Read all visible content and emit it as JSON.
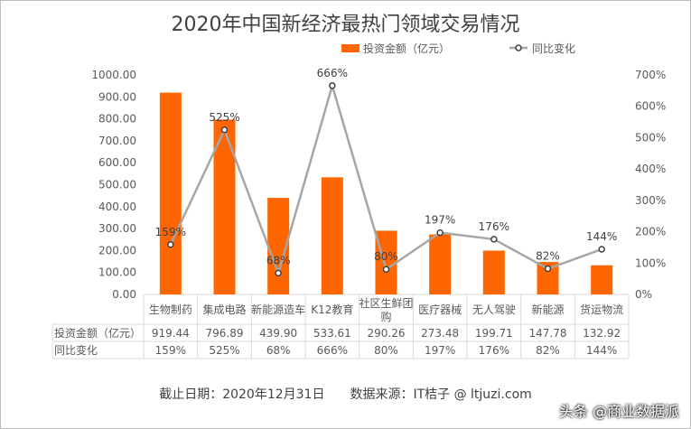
{
  "chart_data": {
    "type": "bar+line",
    "title": "2020年中国新经济最热门领域交易情况",
    "categories": [
      "生物制药",
      "集成电路",
      "新能源造车",
      "K12教育",
      "社区生鲜团购",
      "医疗器械",
      "无人驾驶",
      "新能源",
      "货运物流"
    ],
    "series": [
      {
        "name": "投资金额（亿元）",
        "type": "bar",
        "axis": "left",
        "color": "#FF6600",
        "values": [
          919.44,
          796.89,
          439.9,
          533.61,
          290.26,
          273.48,
          199.71,
          147.78,
          132.92
        ],
        "labels": [
          "919.44",
          "796.89",
          "439.90",
          "533.61",
          "290.26",
          "273.48",
          "199.71",
          "147.78",
          "132.92"
        ]
      },
      {
        "name": "同比变化",
        "type": "line",
        "axis": "right",
        "color": "#A6A6A6",
        "values": [
          159,
          525,
          68,
          666,
          80,
          197,
          176,
          82,
          144
        ],
        "labels": [
          "159%",
          "525%",
          "68%",
          "666%",
          "80%",
          "197%",
          "176%",
          "82%",
          "144%"
        ]
      }
    ],
    "left_axis": {
      "range": [
        0,
        1000
      ],
      "ticks": [
        "0.00",
        "100.00",
        "200.00",
        "300.00",
        "400.00",
        "500.00",
        "600.00",
        "700.00",
        "800.00",
        "900.00",
        "1000.00"
      ]
    },
    "right_axis": {
      "range": [
        0,
        700
      ],
      "ticks": [
        "0%",
        "100%",
        "200%",
        "300%",
        "400%",
        "500%",
        "600%",
        "700%"
      ]
    },
    "legend_position": "top-right",
    "data_table": true
  },
  "footer": "截止日期：2020年12月31日　　数据来源：IT桔子 @ ltjuzi.com",
  "watermark": "头条 @商业数据派"
}
